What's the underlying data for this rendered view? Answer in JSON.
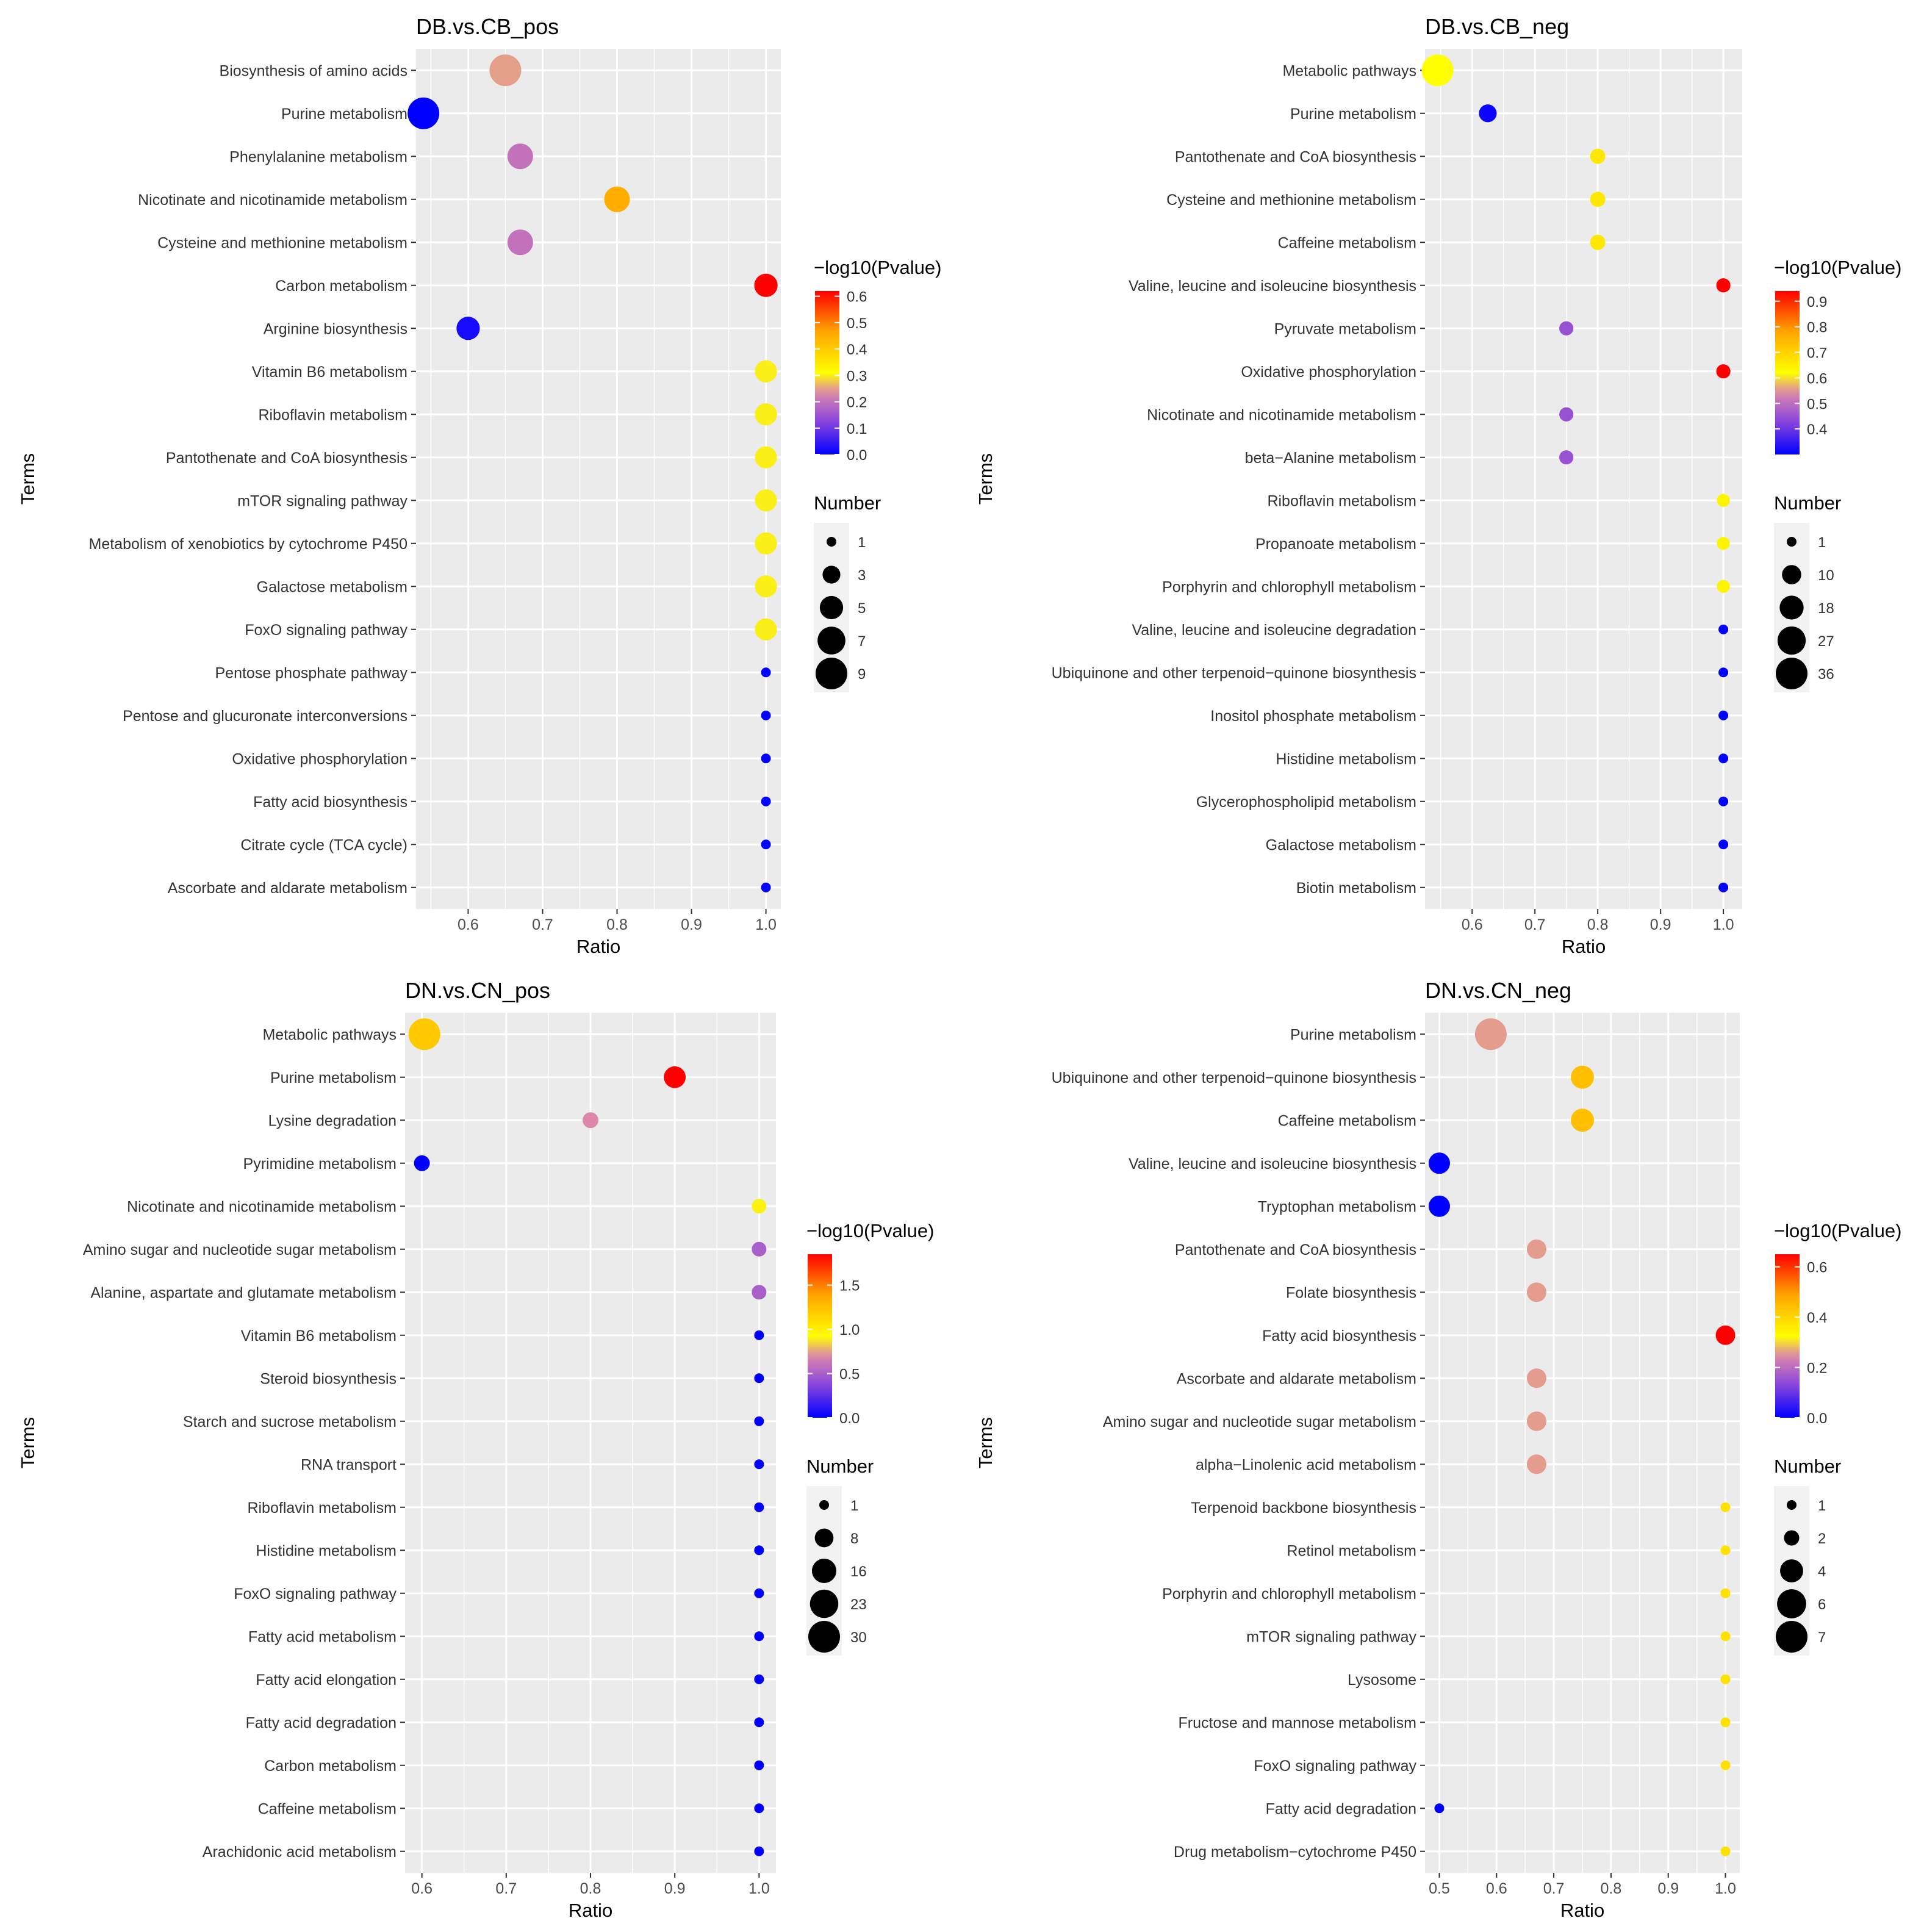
{
  "chart_data": [
    {
      "type": "scatter",
      "title": "DB.vs.CB_pos",
      "xlabel": "Ratio",
      "ylabel": "Terms",
      "xlim": [
        0.53,
        1.02
      ],
      "xticks": [
        0.6,
        0.7,
        0.8,
        0.9,
        1.0
      ],
      "xtick_labels": [
        "0.6",
        "0.7",
        "0.8",
        "0.9",
        "1.0"
      ],
      "terms": [
        {
          "term": "Biosynthesis of amino acids",
          "ratio": 0.65,
          "number": 9,
          "pvalue": 0.25
        },
        {
          "term": "Purine metabolism",
          "ratio": 0.54,
          "number": 9,
          "pvalue": 0.0
        },
        {
          "term": "Phenylalanine metabolism",
          "ratio": 0.67,
          "number": 6,
          "pvalue": 0.2
        },
        {
          "term": "Nicotinate and nicotinamide metabolism",
          "ratio": 0.8,
          "number": 6,
          "pvalue": 0.45
        },
        {
          "term": "Cysteine and methionine metabolism",
          "ratio": 0.67,
          "number": 6,
          "pvalue": 0.2
        },
        {
          "term": "Carbon metabolism",
          "ratio": 1.0,
          "number": 5,
          "pvalue": 0.62
        },
        {
          "term": "Arginine biosynthesis",
          "ratio": 0.6,
          "number": 5,
          "pvalue": 0.02
        },
        {
          "term": "Vitamin B6 metabolism",
          "ratio": 1.0,
          "number": 4.5,
          "pvalue": 0.3
        },
        {
          "term": "Riboflavin metabolism",
          "ratio": 1.0,
          "number": 4.5,
          "pvalue": 0.3
        },
        {
          "term": "Pantothenate and CoA biosynthesis",
          "ratio": 1.0,
          "number": 4.5,
          "pvalue": 0.3
        },
        {
          "term": "mTOR signaling pathway",
          "ratio": 1.0,
          "number": 4.5,
          "pvalue": 0.3
        },
        {
          "term": "Metabolism of xenobiotics by cytochrome P450",
          "ratio": 1.0,
          "number": 4.5,
          "pvalue": 0.3
        },
        {
          "term": "Galactose metabolism",
          "ratio": 1.0,
          "number": 4.5,
          "pvalue": 0.3
        },
        {
          "term": "FoxO signaling pathway",
          "ratio": 1.0,
          "number": 4.5,
          "pvalue": 0.3
        },
        {
          "term": "Pentose phosphate pathway",
          "ratio": 1.0,
          "number": 1,
          "pvalue": 0.0
        },
        {
          "term": "Pentose and glucuronate interconversions",
          "ratio": 1.0,
          "number": 1,
          "pvalue": 0.0
        },
        {
          "term": "Oxidative phosphorylation",
          "ratio": 1.0,
          "number": 1,
          "pvalue": 0.0
        },
        {
          "term": "Fatty acid biosynthesis",
          "ratio": 1.0,
          "number": 1,
          "pvalue": 0.0
        },
        {
          "term": "Citrate cycle (TCA cycle)",
          "ratio": 1.0,
          "number": 1,
          "pvalue": 0.0
        },
        {
          "term": "Ascorbate and aldarate metabolism",
          "ratio": 1.0,
          "number": 1,
          "pvalue": 0.0
        }
      ],
      "color_legend": {
        "title": "−log10(Pvalue)",
        "range": [
          0.0,
          0.62
        ],
        "breaks": [
          0.0,
          0.1,
          0.2,
          0.3,
          0.4,
          0.5,
          0.6
        ],
        "break_labels": [
          "0.0",
          "0.1",
          "0.2",
          "0.3",
          "0.4",
          "0.5",
          "0.6"
        ]
      },
      "size_legend": {
        "title": "Number",
        "range": [
          1,
          9
        ],
        "breaks": [
          1,
          3,
          5,
          7,
          9
        ],
        "break_labels": [
          "1",
          "3",
          "5",
          "7",
          "9"
        ]
      }
    },
    {
      "type": "scatter",
      "title": "DB.vs.CB_neg",
      "xlabel": "Ratio",
      "ylabel": "Terms",
      "xlim": [
        0.525,
        1.03
      ],
      "xticks": [
        0.6,
        0.7,
        0.8,
        0.9,
        1.0
      ],
      "xtick_labels": [
        "0.6",
        "0.7",
        "0.8",
        "0.9",
        "1.0"
      ],
      "terms": [
        {
          "term": "Metabolic pathways",
          "ratio": 0.545,
          "number": 36,
          "pvalue": 0.62
        },
        {
          "term": "Purine metabolism",
          "ratio": 0.625,
          "number": 8,
          "pvalue": 0.31
        },
        {
          "term": "Pantothenate and CoA biosynthesis",
          "ratio": 0.8,
          "number": 5,
          "pvalue": 0.66
        },
        {
          "term": "Cysteine and methionine metabolism",
          "ratio": 0.8,
          "number": 5,
          "pvalue": 0.66
        },
        {
          "term": "Caffeine metabolism",
          "ratio": 0.8,
          "number": 5,
          "pvalue": 0.66
        },
        {
          "term": "Valine, leucine and isoleucine biosynthesis",
          "ratio": 1.0,
          "number": 4,
          "pvalue": 0.94
        },
        {
          "term": "Pyruvate metabolism",
          "ratio": 0.75,
          "number": 4,
          "pvalue": 0.45
        },
        {
          "term": "Oxidative phosphorylation",
          "ratio": 1.0,
          "number": 4,
          "pvalue": 0.94
        },
        {
          "term": "Nicotinate and nicotinamide metabolism",
          "ratio": 0.75,
          "number": 4,
          "pvalue": 0.45
        },
        {
          "term": "beta−Alanine metabolism",
          "ratio": 0.75,
          "number": 4,
          "pvalue": 0.45
        },
        {
          "term": "Riboflavin metabolism",
          "ratio": 1.0,
          "number": 3,
          "pvalue": 0.64
        },
        {
          "term": "Propanoate metabolism",
          "ratio": 1.0,
          "number": 3,
          "pvalue": 0.64
        },
        {
          "term": "Porphyrin and chlorophyll metabolism",
          "ratio": 1.0,
          "number": 3,
          "pvalue": 0.64
        },
        {
          "term": "Valine, leucine and isoleucine degradation",
          "ratio": 1.0,
          "number": 1,
          "pvalue": 0.3
        },
        {
          "term": "Ubiquinone and other terpenoid−quinone biosynthesis",
          "ratio": 1.0,
          "number": 1,
          "pvalue": 0.3
        },
        {
          "term": "Inositol phosphate metabolism",
          "ratio": 1.0,
          "number": 1,
          "pvalue": 0.3
        },
        {
          "term": "Histidine metabolism",
          "ratio": 1.0,
          "number": 1,
          "pvalue": 0.3
        },
        {
          "term": "Glycerophospholipid metabolism",
          "ratio": 1.0,
          "number": 1,
          "pvalue": 0.3
        },
        {
          "term": "Galactose metabolism",
          "ratio": 1.0,
          "number": 1,
          "pvalue": 0.3
        },
        {
          "term": "Biotin metabolism",
          "ratio": 1.0,
          "number": 1,
          "pvalue": 0.3
        }
      ],
      "color_legend": {
        "title": "−log10(Pvalue)",
        "range": [
          0.3,
          0.94
        ],
        "breaks": [
          0.4,
          0.5,
          0.6,
          0.7,
          0.8,
          0.9
        ],
        "break_labels": [
          "0.4",
          "0.5",
          "0.6",
          "0.7",
          "0.8",
          "0.9"
        ]
      },
      "size_legend": {
        "title": "Number",
        "range": [
          1,
          36
        ],
        "breaks": [
          1,
          10,
          18,
          27,
          36
        ],
        "break_labels": [
          "1",
          "10",
          "18",
          "27",
          "36"
        ]
      }
    },
    {
      "type": "scatter",
      "title": "DN.vs.CN_pos",
      "xlabel": "Ratio",
      "ylabel": "Terms",
      "xlim": [
        0.58,
        1.02
      ],
      "xticks": [
        0.6,
        0.7,
        0.8,
        0.9,
        1.0
      ],
      "xtick_labels": [
        "0.6",
        "0.7",
        "0.8",
        "0.9",
        "1.0"
      ],
      "terms": [
        {
          "term": "Metabolic pathways",
          "ratio": 0.603,
          "number": 30,
          "pvalue": 1.2
        },
        {
          "term": "Purine metabolism",
          "ratio": 0.9,
          "number": 12,
          "pvalue": 1.85
        },
        {
          "term": "Lysine degradation",
          "ratio": 0.8,
          "number": 5,
          "pvalue": 0.7
        },
        {
          "term": "Pyrimidine metabolism",
          "ratio": 0.6,
          "number": 5,
          "pvalue": 0.0
        },
        {
          "term": "Nicotinate and nicotinamide metabolism",
          "ratio": 1.0,
          "number": 4,
          "pvalue": 0.9
        },
        {
          "term": "Amino sugar and nucleotide sugar metabolism",
          "ratio": 1.0,
          "number": 4,
          "pvalue": 0.5
        },
        {
          "term": "Alanine, aspartate and glutamate metabolism",
          "ratio": 1.0,
          "number": 4,
          "pvalue": 0.5
        },
        {
          "term": "Vitamin B6 metabolism",
          "ratio": 1.0,
          "number": 1,
          "pvalue": 0.0
        },
        {
          "term": "Steroid biosynthesis",
          "ratio": 1.0,
          "number": 1,
          "pvalue": 0.0
        },
        {
          "term": "Starch and sucrose metabolism",
          "ratio": 1.0,
          "number": 1,
          "pvalue": 0.0
        },
        {
          "term": "RNA transport",
          "ratio": 1.0,
          "number": 1,
          "pvalue": 0.0
        },
        {
          "term": "Riboflavin metabolism",
          "ratio": 1.0,
          "number": 1,
          "pvalue": 0.0
        },
        {
          "term": "Histidine metabolism",
          "ratio": 1.0,
          "number": 1,
          "pvalue": 0.0
        },
        {
          "term": "FoxO signaling pathway",
          "ratio": 1.0,
          "number": 1,
          "pvalue": 0.0
        },
        {
          "term": "Fatty acid metabolism",
          "ratio": 1.0,
          "number": 1,
          "pvalue": 0.0
        },
        {
          "term": "Fatty acid elongation",
          "ratio": 1.0,
          "number": 1,
          "pvalue": 0.0
        },
        {
          "term": "Fatty acid degradation",
          "ratio": 1.0,
          "number": 1,
          "pvalue": 0.0
        },
        {
          "term": "Carbon metabolism",
          "ratio": 1.0,
          "number": 1,
          "pvalue": 0.0
        },
        {
          "term": "Caffeine metabolism",
          "ratio": 1.0,
          "number": 1,
          "pvalue": 0.0
        },
        {
          "term": "Arachidonic acid metabolism",
          "ratio": 1.0,
          "number": 1,
          "pvalue": 0.0
        }
      ],
      "color_legend": {
        "title": "−log10(Pvalue)",
        "range": [
          0.0,
          1.85
        ],
        "breaks": [
          0.0,
          0.5,
          1.0,
          1.5
        ],
        "break_labels": [
          "0.0",
          "0.5",
          "1.0",
          "1.5"
        ]
      },
      "size_legend": {
        "title": "Number",
        "range": [
          1,
          30
        ],
        "breaks": [
          1,
          8,
          16,
          23,
          30
        ],
        "break_labels": [
          "1",
          "8",
          "16",
          "23",
          "30"
        ]
      }
    },
    {
      "type": "scatter",
      "title": "DN.vs.CN_neg",
      "xlabel": "Ratio",
      "ylabel": "Terms",
      "xlim": [
        0.475,
        1.025
      ],
      "xticks": [
        0.5,
        0.6,
        0.7,
        0.8,
        0.9,
        1.0
      ],
      "xtick_labels": [
        "0.5",
        "0.6",
        "0.7",
        "0.8",
        "0.9",
        "1.0"
      ],
      "terms": [
        {
          "term": "Purine metabolism",
          "ratio": 0.59,
          "number": 7,
          "pvalue": 0.26
        },
        {
          "term": "Ubiquinone and other terpenoid−quinone biosynthesis",
          "ratio": 0.75,
          "number": 4,
          "pvalue": 0.44
        },
        {
          "term": "Caffeine metabolism",
          "ratio": 0.75,
          "number": 4,
          "pvalue": 0.44
        },
        {
          "term": "Valine, leucine and isoleucine biosynthesis",
          "ratio": 0.5,
          "number": 3.5,
          "pvalue": 0.0
        },
        {
          "term": "Tryptophan metabolism",
          "ratio": 0.5,
          "number": 3.5,
          "pvalue": 0.0
        },
        {
          "term": "Pantothenate and CoA biosynthesis",
          "ratio": 0.67,
          "number": 3,
          "pvalue": 0.26
        },
        {
          "term": "Folate biosynthesis",
          "ratio": 0.67,
          "number": 3,
          "pvalue": 0.26
        },
        {
          "term": "Fatty acid biosynthesis",
          "ratio": 1.0,
          "number": 3,
          "pvalue": 0.65
        },
        {
          "term": "Ascorbate and aldarate metabolism",
          "ratio": 0.67,
          "number": 3,
          "pvalue": 0.26
        },
        {
          "term": "Amino sugar and nucleotide sugar metabolism",
          "ratio": 0.67,
          "number": 3,
          "pvalue": 0.26
        },
        {
          "term": "alpha−Linolenic acid metabolism",
          "ratio": 0.67,
          "number": 3,
          "pvalue": 0.26
        },
        {
          "term": "Terpenoid backbone biosynthesis",
          "ratio": 1.0,
          "number": 1,
          "pvalue": 0.38
        },
        {
          "term": "Retinol metabolism",
          "ratio": 1.0,
          "number": 1,
          "pvalue": 0.38
        },
        {
          "term": "Porphyrin and chlorophyll metabolism",
          "ratio": 1.0,
          "number": 1,
          "pvalue": 0.38
        },
        {
          "term": "mTOR signaling pathway",
          "ratio": 1.0,
          "number": 1,
          "pvalue": 0.38
        },
        {
          "term": "Lysosome",
          "ratio": 1.0,
          "number": 1,
          "pvalue": 0.38
        },
        {
          "term": "Fructose and mannose metabolism",
          "ratio": 1.0,
          "number": 1,
          "pvalue": 0.38
        },
        {
          "term": "FoxO signaling pathway",
          "ratio": 1.0,
          "number": 1,
          "pvalue": 0.38
        },
        {
          "term": "Fatty acid degradation",
          "ratio": 0.5,
          "number": 1,
          "pvalue": 0.0
        },
        {
          "term": "Drug metabolism−cytochrome P450",
          "ratio": 1.0,
          "number": 1,
          "pvalue": 0.38
        }
      ],
      "color_legend": {
        "title": "−log10(Pvalue)",
        "range": [
          0.0,
          0.65
        ],
        "breaks": [
          0.0,
          0.2,
          0.4,
          0.6
        ],
        "break_labels": [
          "0.0",
          "0.2",
          "0.4",
          "0.6"
        ]
      },
      "size_legend": {
        "title": "Number",
        "range": [
          1,
          7
        ],
        "breaks": [
          1,
          2,
          4,
          6,
          7
        ],
        "break_labels": [
          "1",
          "2",
          "4",
          "6",
          "7"
        ]
      }
    }
  ],
  "colors": {
    "panel_background": "#ebebeb",
    "gridline": "#ffffff",
    "gradient_low": "#0000ff",
    "gradient_mid": "#ffff00",
    "gradient_high": "#ff0000",
    "low_value_pink": "#dd88aa",
    "legend_key_background": "#f2f2f2"
  }
}
